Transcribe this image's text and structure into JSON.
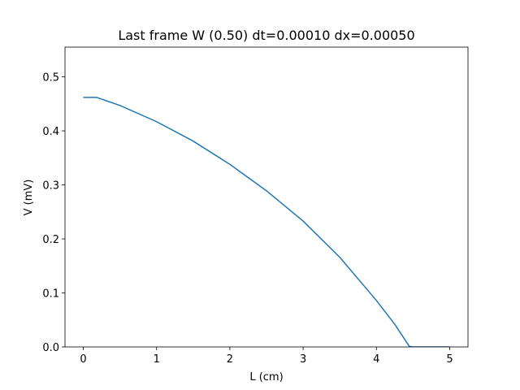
{
  "chart_data": {
    "type": "line",
    "title": "Last frame W (0.50) dt=0.00010 dx=0.00050",
    "xlabel": "L (cm)",
    "ylabel": "V (mV)",
    "xlim": [
      -0.25,
      5.25
    ],
    "ylim": [
      0.0,
      0.555
    ],
    "xticks": [
      0,
      1,
      2,
      3,
      4,
      5
    ],
    "yticks": [
      0.0,
      0.1,
      0.2,
      0.3,
      0.4,
      0.5
    ],
    "xtick_labels": [
      "0",
      "1",
      "2",
      "3",
      "4",
      "5"
    ],
    "ytick_labels": [
      "0.0",
      "0.1",
      "0.2",
      "0.3",
      "0.4",
      "0.5"
    ],
    "grid": false,
    "legend": "none",
    "series": [
      {
        "color": "#1f77b4",
        "x": [
          0.0,
          0.18,
          0.5,
          1.0,
          1.5,
          2.0,
          2.5,
          3.0,
          3.5,
          4.0,
          4.25,
          4.45,
          4.5,
          5.0
        ],
        "y": [
          0.462,
          0.462,
          0.447,
          0.417,
          0.381,
          0.338,
          0.289,
          0.233,
          0.166,
          0.086,
          0.042,
          0.001,
          0.0,
          0.0
        ]
      }
    ]
  }
}
